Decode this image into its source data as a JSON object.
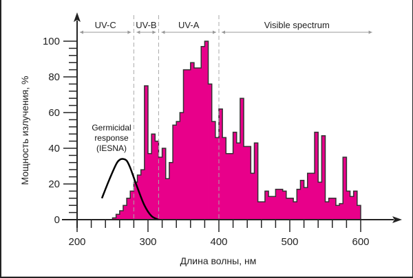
{
  "chart_data": {
    "type": "bar",
    "title": "",
    "xlabel": "Длина волны, нм",
    "ylabel": "Мощность излучения, %",
    "xlim": [
      200,
      600
    ],
    "ylim": [
      0,
      100
    ],
    "x_ticks": [
      200,
      300,
      400,
      500,
      600
    ],
    "y_ticks": [
      0,
      20,
      40,
      60,
      80,
      100
    ],
    "bin_width": 5,
    "bin_start": 250,
    "values": [
      1,
      3,
      5,
      8,
      12,
      16,
      21,
      25,
      28,
      75,
      37,
      48,
      44,
      35,
      40,
      23,
      32,
      53,
      55,
      60,
      84,
      84,
      88,
      85,
      85,
      97,
      100,
      76,
      55,
      46,
      62,
      46,
      37,
      37,
      49,
      43,
      68,
      41,
      41,
      26,
      43,
      10,
      10,
      16,
      13,
      13,
      17,
      17,
      16,
      12,
      12,
      10,
      17,
      22,
      18,
      26,
      26,
      49,
      21,
      47,
      10,
      12,
      12,
      8,
      9,
      35,
      16,
      13,
      16,
      8
    ],
    "bar_color": "#e8008a",
    "bands": [
      {
        "label": "UV-C",
        "from": 200,
        "to": 280
      },
      {
        "label": "UV-B",
        "from": 280,
        "to": 315
      },
      {
        "label": "UV-A",
        "from": 315,
        "to": 400
      },
      {
        "label": "Visible spectrum",
        "from": 400,
        "to": 620
      }
    ],
    "germicidal_curve": {
      "label_lines": [
        "Germicidal",
        "response",
        "(IESNA)"
      ],
      "x": [
        235,
        245,
        255,
        260,
        265,
        270,
        275,
        285,
        295,
        305,
        315
      ],
      "y": [
        12,
        22,
        31,
        33.5,
        34,
        33,
        29,
        18,
        8,
        2,
        0
      ]
    }
  }
}
